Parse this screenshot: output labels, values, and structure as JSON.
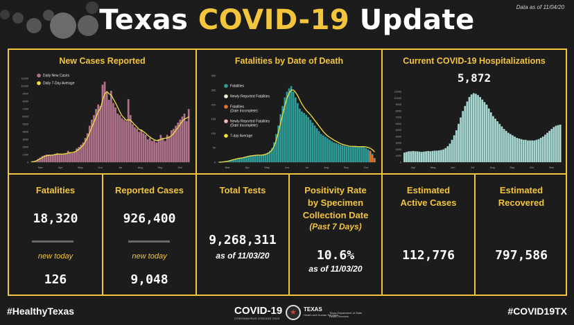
{
  "header": {
    "title_part1": "Texas",
    "title_part2": "COVID-19",
    "title_part3": "Update",
    "as_of": "Data as of 11/04/20"
  },
  "charts": {
    "new_cases_title": "New Cases Reported",
    "fatalities_title": "Fatalities by Date of Death",
    "hospital_title": "Current COVID-19 Hospitalizations",
    "hospital_value": "5,872"
  },
  "tiles": {
    "fatalities": {
      "label": "Fatalities",
      "value": "18,320",
      "new_label": "new today",
      "new_value": "126"
    },
    "cases": {
      "label": "Reported Cases",
      "value": "926,400",
      "new_label": "new today",
      "new_value": "9,048"
    },
    "tests": {
      "label": "Total Tests",
      "value": "9,268,311",
      "asof": "as of 11/03/20"
    },
    "positivity": {
      "label_l1": "Positivity Rate",
      "label_l2": "by Specimen",
      "label_l3": "Collection Date",
      "sub": "(Past 7 Days)",
      "value": "10.6%",
      "asof": "as of 11/03/20"
    },
    "active": {
      "label_l1": "Estimated",
      "label_l2": "Active Cases",
      "value": "112,776"
    },
    "recovered": {
      "label_l1": "Estimated",
      "label_l2": "Recovered",
      "value": "797,586"
    }
  },
  "footer": {
    "hashtag_left": "#HealthyTexas",
    "hashtag_right": "#COVID19TX",
    "logo_main": "COVID-19",
    "logo_sub": "CORONAVIRUS DISEASE 2019",
    "agency": "TEXAS",
    "agency_sub": "Health and Human Services",
    "agency2": "Texas Department of State Health Services"
  },
  "colors": {
    "accent": "#f2c53d",
    "background": "#1c1c1c",
    "cases_bar": "#b0728a",
    "fatal_bar": "#2e9c96",
    "hosp_bar": "#a8d8d2",
    "avg_line": "#f0e040"
  },
  "chart_data": [
    {
      "type": "bar",
      "title": "New Cases Reported",
      "y_ticks": [
        "11000",
        "10000",
        "9000",
        "8000",
        "7000",
        "6000",
        "5000",
        "4000",
        "3000",
        "2000",
        "1000",
        "0"
      ],
      "x_ticks": [
        "Mar",
        "Apr",
        "May",
        "Jun",
        "Jul",
        "Aug",
        "Sep",
        "Oct"
      ],
      "ylim": [
        0,
        11500
      ],
      "series": [
        {
          "name": "Daily New Cases",
          "color": "#b0728a",
          "values": [
            50,
            100,
            200,
            400,
            600,
            800,
            900,
            1000,
            1000,
            900,
            1000,
            1100,
            1200,
            1100,
            1000,
            1100,
            1200,
            1500,
            1300,
            1200,
            1400,
            1800,
            2000,
            2300,
            2600,
            3200,
            3800,
            4800,
            5600,
            6200,
            7000,
            7600,
            7400,
            10200,
            10600,
            9200,
            8200,
            9400,
            7800,
            7200,
            6400,
            6200,
            5800,
            5600,
            5400,
            8300,
            6200,
            5000,
            4600,
            4400,
            4000,
            4300,
            3800,
            3600,
            3000,
            3200,
            2800,
            2900,
            2600,
            3000,
            3600,
            3200,
            2800,
            3600,
            3400,
            4200,
            4400,
            4800,
            5200,
            5600,
            6000,
            6400,
            5400,
            7000
          ]
        },
        {
          "name": "Daily 7-Day Average",
          "color": "#f0e040",
          "values": [
            50,
            80,
            150,
            300,
            450,
            600,
            750,
            850,
            900,
            920,
            950,
            1000,
            1050,
            1070,
            1060,
            1080,
            1120,
            1200,
            1250,
            1280,
            1350,
            1500,
            1700,
            1950,
            2250,
            2700,
            3250,
            3900,
            4600,
            5300,
            6000,
            6700,
            7100,
            8200,
            9000,
            9300,
            9000,
            8800,
            8300,
            7800,
            7200,
            6600,
            6100,
            5800,
            5500,
            5600,
            5500,
            5200,
            4900,
            4600,
            4300,
            4200,
            4000,
            3800,
            3500,
            3300,
            3100,
            2950,
            2850,
            2900,
            3000,
            3100,
            3150,
            3200,
            3300,
            3500,
            3800,
            4200,
            4600,
            5000,
            5400,
            5700,
            5800,
            6000
          ]
        }
      ]
    },
    {
      "type": "bar",
      "title": "Fatalities by Date of Death",
      "y_ticks": [
        "300",
        "250",
        "200",
        "150",
        "100",
        "50",
        "0"
      ],
      "x_ticks": [
        "Mar",
        "Apr",
        "May",
        "Jun",
        "Jul",
        "Aug",
        "Sep",
        "Oct"
      ],
      "ylim": [
        0,
        320
      ],
      "series": [
        {
          "name": "Fatalities",
          "color": "#2e9c96",
          "values": [
            0,
            0,
            1,
            2,
            4,
            6,
            8,
            10,
            12,
            14,
            15,
            16,
            18,
            20,
            22,
            24,
            24,
            26,
            25,
            24,
            26,
            28,
            30,
            34,
            40,
            50,
            70,
            100,
            130,
            170,
            200,
            230,
            250,
            262,
            270,
            250,
            230,
            210,
            190,
            180,
            175,
            168,
            160,
            150,
            140,
            130,
            120,
            110,
            100,
            95,
            90,
            85,
            80,
            75,
            70,
            68,
            65,
            62,
            60,
            58,
            56,
            55,
            54,
            56,
            55,
            54,
            56,
            55,
            54,
            50,
            45,
            40,
            30,
            15
          ]
        },
        {
          "name": "Newly Reported Fatalities",
          "color": "#f0f0d0",
          "values": []
        },
        {
          "name": "Fatalities (Date Incomplete)",
          "color": "#e8742c",
          "values": []
        },
        {
          "name": "Newly Reported Fatalities (Date Incomplete)",
          "color": "#f0b8b8",
          "values": []
        },
        {
          "name": "7-day Average",
          "color": "#f0e040",
          "values": [
            0,
            0,
            1,
            2,
            3,
            5,
            7,
            9,
            11,
            13,
            14,
            15,
            17,
            19,
            21,
            22,
            23,
            24,
            25,
            25,
            25,
            26,
            28,
            31,
            36,
            44,
            58,
            80,
            108,
            140,
            172,
            202,
            228,
            246,
            256,
            256,
            248,
            236,
            220,
            206,
            194,
            184,
            176,
            168,
            158,
            148,
            138,
            128,
            118,
            108,
            100,
            93,
            88,
            83,
            78,
            74,
            70,
            66,
            63,
            61,
            59,
            57,
            56,
            56,
            56,
            55,
            55,
            55,
            55,
            54,
            52,
            49,
            44,
            36
          ]
        }
      ]
    },
    {
      "type": "bar",
      "title": "Current COVID-19 Hospitalizations",
      "y_ticks": [
        "11000",
        "10000",
        "9000",
        "8000",
        "7000",
        "6000",
        "5000",
        "4000",
        "3000",
        "2000",
        "1000",
        "0"
      ],
      "x_ticks": [
        "Apr",
        "May",
        "Jun",
        "Jul",
        "Aug",
        "Sep",
        "Oct",
        "Nov"
      ],
      "ylim": [
        0,
        11500
      ],
      "series": [
        {
          "name": "Current COVID-19 Hospitalizations",
          "color": "#a8d8d2",
          "values": [
            1500,
            1600,
            1700,
            1700,
            1750,
            1700,
            1700,
            1650,
            1600,
            1650,
            1700,
            1750,
            1700,
            1750,
            1800,
            1800,
            1850,
            1900,
            2000,
            2200,
            2500,
            2900,
            3500,
            4200,
            5000,
            6000,
            7000,
            8000,
            8800,
            9500,
            10200,
            10600,
            10800,
            10700,
            10500,
            10200,
            9800,
            9400,
            9000,
            8400,
            7800,
            7200,
            6800,
            6400,
            6000,
            5600,
            5200,
            4900,
            4600,
            4400,
            4200,
            4000,
            3800,
            3700,
            3600,
            3500,
            3500,
            3400,
            3400,
            3400,
            3400,
            3500,
            3600,
            3800,
            4000,
            4300,
            4600,
            4900,
            5200,
            5500,
            5700,
            5800,
            5872
          ]
        }
      ]
    }
  ]
}
